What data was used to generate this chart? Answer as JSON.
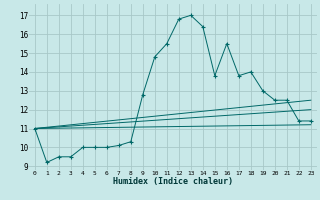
{
  "xlabel": "Humidex (Indice chaleur)",
  "bg_color": "#c8e8e8",
  "grid_color": "#a8c8c8",
  "line_color": "#006868",
  "xlim": [
    -0.5,
    23.5
  ],
  "ylim": [
    8.8,
    17.6
  ],
  "yticks": [
    9,
    10,
    11,
    12,
    13,
    14,
    15,
    16,
    17
  ],
  "xticks": [
    0,
    1,
    2,
    3,
    4,
    5,
    6,
    7,
    8,
    9,
    10,
    11,
    12,
    13,
    14,
    15,
    16,
    17,
    18,
    19,
    20,
    21,
    22,
    23
  ],
  "xtick_labels": [
    "0",
    "1",
    "2",
    "3",
    "4",
    "5",
    "6",
    "7",
    "8",
    "9",
    "10",
    "11",
    "12",
    "13",
    "14",
    "15",
    "16",
    "17",
    "18",
    "19",
    "20",
    "21",
    "22",
    "23"
  ],
  "series_main": {
    "x": [
      0,
      1,
      2,
      3,
      4,
      5,
      6,
      7,
      8,
      9,
      10,
      11,
      12,
      13,
      14,
      15,
      16,
      17,
      18,
      19,
      20,
      21,
      22,
      23
    ],
    "y": [
      11.0,
      9.2,
      9.5,
      9.5,
      10.0,
      10.0,
      10.0,
      10.1,
      10.3,
      12.8,
      14.8,
      15.5,
      16.8,
      17.0,
      16.4,
      13.8,
      15.5,
      13.8,
      14.0,
      13.0,
      12.5,
      12.5,
      11.4,
      11.4
    ]
  },
  "series_lines": [
    {
      "x": [
        0,
        23
      ],
      "y": [
        11.0,
        11.2
      ]
    },
    {
      "x": [
        0,
        23
      ],
      "y": [
        11.0,
        12.5
      ]
    },
    {
      "x": [
        0,
        23
      ],
      "y": [
        11.0,
        12.0
      ]
    }
  ]
}
